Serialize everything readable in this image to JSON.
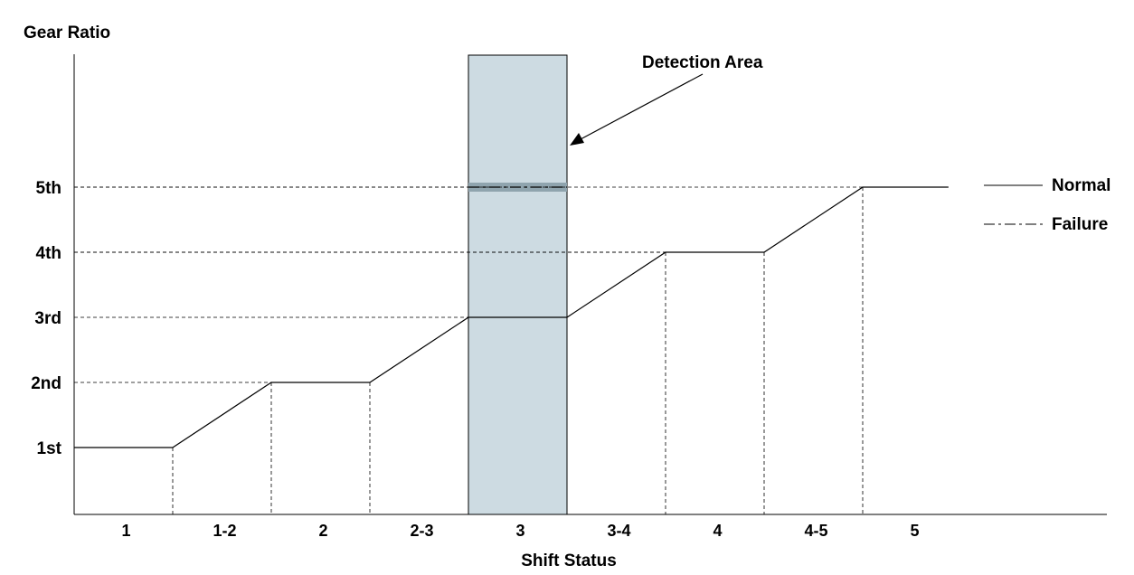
{
  "chart_data": {
    "type": "line",
    "title": "",
    "ylabel": "Gear Ratio",
    "xlabel": "Shift Status",
    "y_categories": [
      "1st",
      "2nd",
      "3rd",
      "4th",
      "5th"
    ],
    "x_categories": [
      "1",
      "1-2",
      "2",
      "2-3",
      "3",
      "3-4",
      "4",
      "4-5",
      "5"
    ],
    "series": [
      {
        "name": "Normal",
        "style": "solid",
        "points": [
          [
            0,
            1
          ],
          [
            1,
            1
          ],
          [
            2,
            2
          ],
          [
            3,
            2
          ],
          [
            4,
            3
          ],
          [
            5,
            3
          ],
          [
            6,
            4
          ],
          [
            7,
            4
          ],
          [
            8,
            5
          ],
          [
            8.87,
            5
          ]
        ]
      },
      {
        "name": "Failure",
        "style": "dash-dot",
        "points": [
          [
            4,
            5
          ],
          [
            5,
            5
          ]
        ]
      }
    ],
    "highlight": {
      "label": "Detection Area",
      "x_from": 4,
      "x_to": 5
    },
    "legend": {
      "position": "right",
      "entries": [
        "Normal",
        "Failure"
      ]
    },
    "grid": "dashed reference lines to axes",
    "colors": {
      "line": "#000000",
      "highlight_fill": "#cddbe2",
      "failure_band": "#8fa4ae"
    }
  }
}
